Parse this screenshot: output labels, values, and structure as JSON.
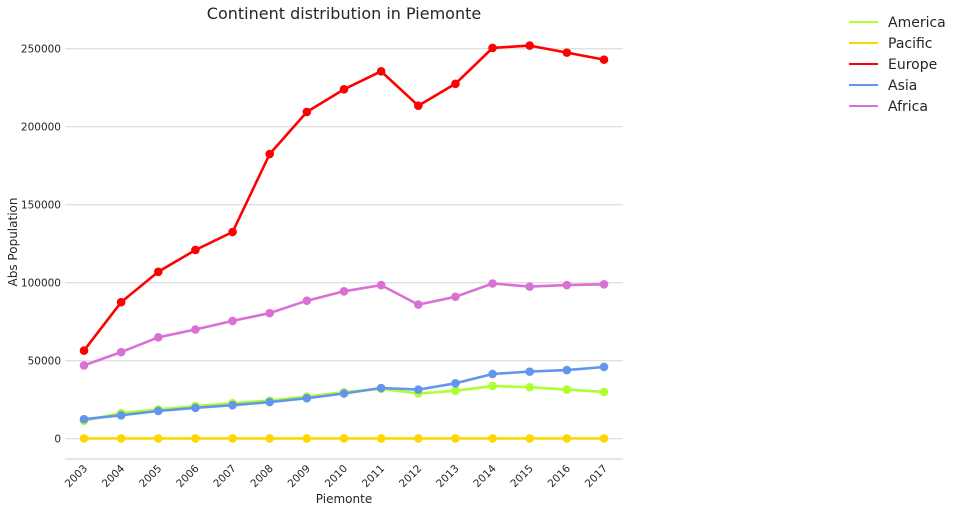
{
  "chart_data": {
    "type": "line",
    "title": "Continent distribution in Piemonte",
    "xlabel": "Piemonte",
    "ylabel": "Abs Population",
    "x": [
      "2003",
      "2004",
      "2005",
      "2006",
      "2007",
      "2008",
      "2009",
      "2010",
      "2011",
      "2012",
      "2013",
      "2014",
      "2015",
      "2016",
      "2017"
    ],
    "ylim": [
      -13000,
      262000
    ],
    "yticks": [
      0,
      50000,
      100000,
      150000,
      200000,
      250000
    ],
    "ytick_labels": [
      "0",
      "50000",
      "100000",
      "150000",
      "200000",
      "250000"
    ],
    "grid": "horizontal",
    "legend_position": "outside-top-right",
    "markers": true,
    "series": [
      {
        "name": "America",
        "color": "#adff2f",
        "values": [
          11500,
          16500,
          18800,
          21000,
          22800,
          24500,
          27000,
          29800,
          32000,
          29000,
          30700,
          33800,
          33000,
          31500,
          30000
        ]
      },
      {
        "name": "Pacific",
        "color": "#ffd700",
        "values": [
          200,
          200,
          200,
          200,
          200,
          200,
          200,
          200,
          200,
          200,
          200,
          200,
          200,
          200,
          200
        ]
      },
      {
        "name": "Europe",
        "color": "#ff0000",
        "values": [
          56500,
          87500,
          107000,
          121000,
          132500,
          182500,
          209500,
          224000,
          235500,
          213500,
          227500,
          250500,
          252000,
          247500,
          243000
        ]
      },
      {
        "name": "Asia",
        "color": "#6495ed",
        "values": [
          12500,
          15000,
          17800,
          19800,
          21500,
          23500,
          26000,
          29000,
          32500,
          31500,
          35500,
          41500,
          43000,
          44000,
          46000
        ]
      },
      {
        "name": "Africa",
        "color": "#da70d6",
        "values": [
          47000,
          55500,
          65000,
          70000,
          75500,
          80500,
          88500,
          94500,
          98500,
          86000,
          91000,
          99500,
          97500,
          98500,
          99000
        ]
      }
    ]
  }
}
